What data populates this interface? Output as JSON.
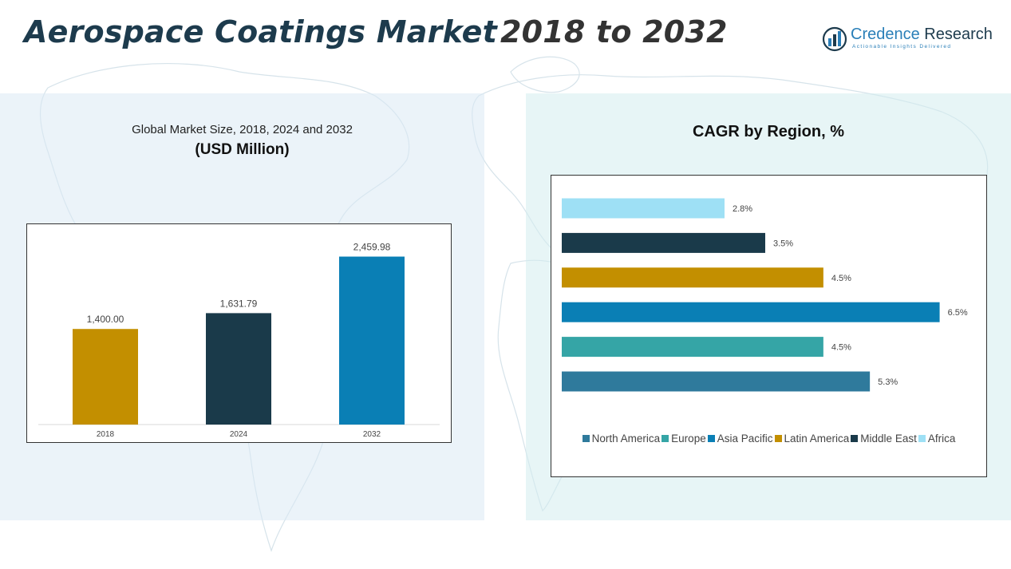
{
  "title": {
    "part1": "Aerospace Coatings Market",
    "part2": "2018 to 2032"
  },
  "logo": {
    "name_part1": "Credence",
    "name_part2": "Research",
    "tagline": "Actionable Insights Delivered",
    "icon": "bar-chart-circle-icon",
    "color": "#2a7fb8"
  },
  "left_panel": {
    "subtitle": "Global Market Size, 2018, 2024 and 2032",
    "unit": "(USD Million)"
  },
  "right_panel": {
    "title": "CAGR by Region, %"
  },
  "chart_data": [
    {
      "type": "bar",
      "categories": [
        "2018",
        "2024",
        "2032"
      ],
      "values": [
        1400.0,
        1631.79,
        2459.98
      ],
      "data_labels": [
        "1,400.00",
        "1,631.79",
        "2,459.98"
      ],
      "colors": [
        "#c38f00",
        "#1a3a4a",
        "#0a7fb5"
      ],
      "title": "Global Market Size, 2018, 2024 and 2032",
      "ylabel": "(USD Million)",
      "ylim": [
        0,
        2700
      ],
      "grid": false
    },
    {
      "type": "bar",
      "orientation": "horizontal",
      "categories": [
        "Africa",
        "Middle East",
        "Latin America",
        "Asia Pacific",
        "Europe",
        "North America"
      ],
      "values": [
        2.8,
        3.5,
        4.5,
        6.5,
        4.5,
        5.3
      ],
      "data_labels": [
        "2.8%",
        "3.5%",
        "4.5%",
        "6.5%",
        "4.5%",
        "5.3%"
      ],
      "colors": [
        "#9ee0f5",
        "#1a3a4a",
        "#c38f00",
        "#0a7fb5",
        "#35a5a6",
        "#2f7a9c"
      ],
      "title": "CAGR by Region, %",
      "xlim": [
        0,
        7.0
      ],
      "grid": false,
      "legend": {
        "placement": "bottom",
        "items": [
          {
            "label": "North America",
            "color": "#2f7a9c"
          },
          {
            "label": "Europe",
            "color": "#35a5a6"
          },
          {
            "label": "Asia Pacific",
            "color": "#0a7fb5"
          },
          {
            "label": "Latin America",
            "color": "#c38f00"
          },
          {
            "label": "Middle East",
            "color": "#1a3a4a"
          },
          {
            "label": "Africa",
            "color": "#9ee0f5"
          }
        ]
      }
    }
  ]
}
